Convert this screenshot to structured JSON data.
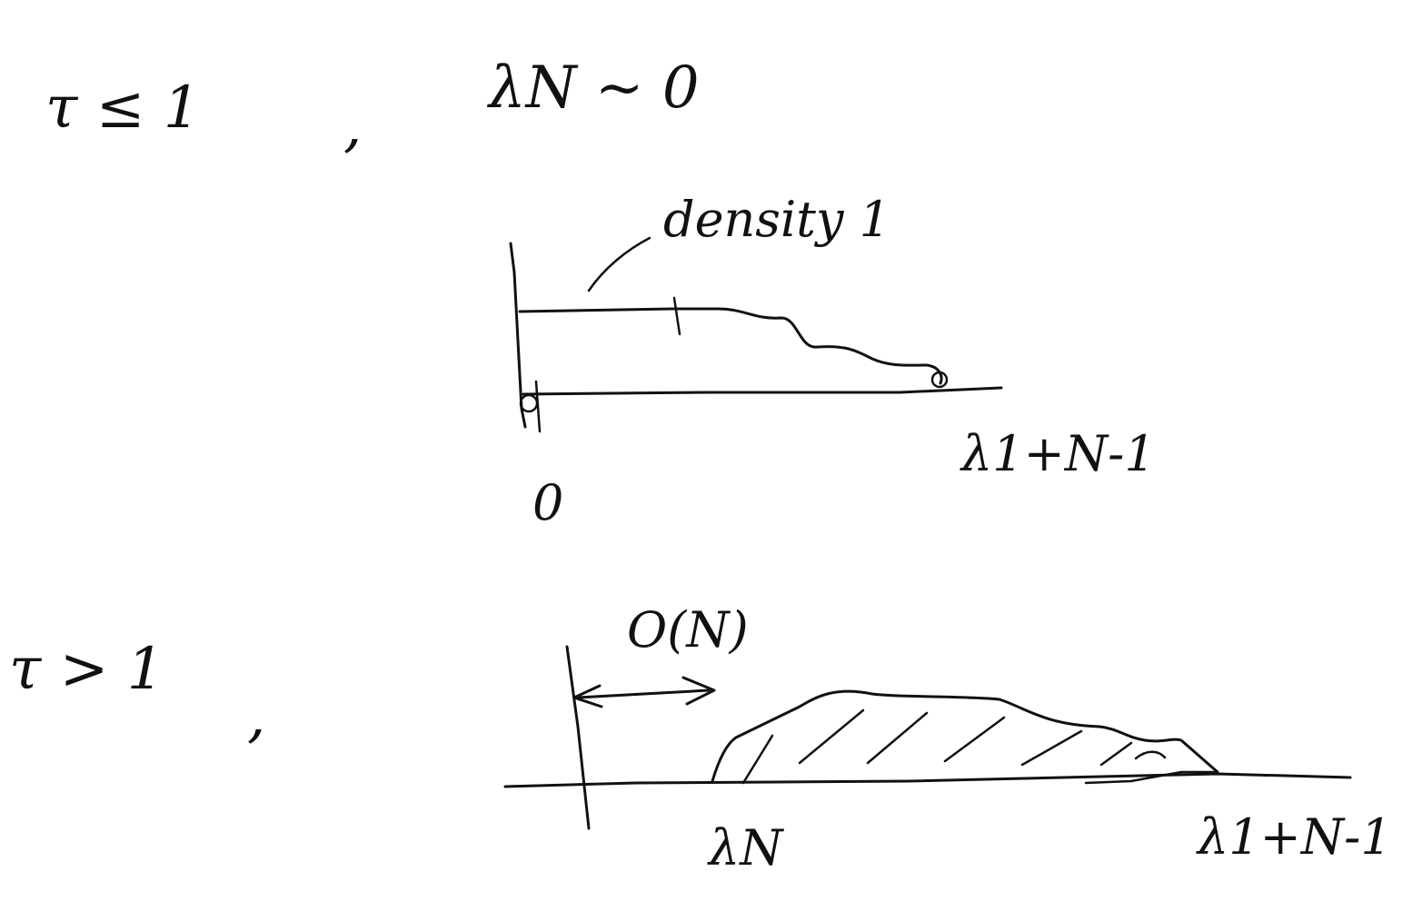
{
  "top_panel": {
    "condition": "τ ≤ 1",
    "separator": ",",
    "statement": "λN ~ 0",
    "density_label": "density 1",
    "origin_label": "0",
    "right_end_label": "λ1+N-1"
  },
  "bottom_panel": {
    "condition": "τ > 1",
    "separator": ",",
    "gap_label": "O(N)",
    "left_end_label": "λN",
    "right_end_label": "λ1+N-1"
  }
}
